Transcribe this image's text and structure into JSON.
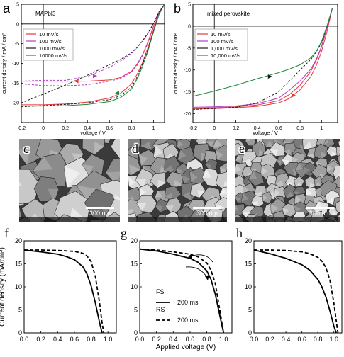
{
  "panel_labels": [
    "a",
    "b",
    "c",
    "d",
    "e",
    "f",
    "g",
    "h"
  ],
  "sem": {
    "scale_bar_label": "300 nm",
    "panels": [
      {
        "id": "c",
        "grain": "large"
      },
      {
        "id": "d",
        "grain": "medium"
      },
      {
        "id": "e",
        "grain": "small"
      }
    ]
  },
  "colors": {
    "red": "#e8343a",
    "magenta": "#b43cc8",
    "black": "#1a1a1a",
    "green": "#1f8a3c"
  },
  "chart_data": [
    {
      "id": "a",
      "type": "line",
      "annotation": "MAPbI3",
      "xlabel": "voltage / V",
      "ylabel": "current density / mA / cm²",
      "xlim": [
        -0.2,
        1.1
      ],
      "ylim": [
        -25,
        5
      ],
      "xticks": [
        -0.2,
        0,
        0.2,
        0.4,
        0.6,
        0.8,
        1
      ],
      "yticks": [
        -20,
        -15,
        -10,
        -5,
        0,
        5
      ],
      "legend_position": "middle-left",
      "series": [
        {
          "name": "10 mV/s",
          "color": "#e8343a",
          "style": "solid",
          "x": [
            -0.2,
            0,
            0.2,
            0.4,
            0.6,
            0.7,
            0.8,
            0.85,
            0.9,
            0.95,
            1.0,
            1.05,
            1.1
          ],
          "y": [
            -14.5,
            -14.5,
            -14.5,
            -14.5,
            -14.2,
            -13.6,
            -12,
            -10.2,
            -7.8,
            -4.5,
            -0.5,
            3,
            5
          ]
        },
        {
          "name": "10 mV/s",
          "color": "#e8343a",
          "style": "solid",
          "x": [
            -0.2,
            0,
            0.2,
            0.4,
            0.6,
            0.7,
            0.8,
            0.85,
            0.9,
            0.95,
            1.0,
            1.05,
            1.1
          ],
          "y": [
            -20.5,
            -20.5,
            -20.3,
            -19.8,
            -18.8,
            -17.6,
            -15.2,
            -12.8,
            -9.8,
            -6,
            -1.5,
            2.5,
            5
          ]
        },
        {
          "name": "100 mV/s",
          "color": "#b43cc8",
          "style": "dashed",
          "x": [
            -0.2,
            0,
            0.2,
            0.4,
            0.6,
            0.7,
            0.8,
            0.85,
            0.9,
            0.95,
            1.0,
            1.05,
            1.1
          ],
          "y": [
            -15.2,
            -15.6,
            -15.7,
            -15.4,
            -14.5,
            -13.8,
            -12.2,
            -10.5,
            -8,
            -4.8,
            -0.8,
            3,
            5
          ]
        },
        {
          "name": "100 mV/s",
          "color": "#b43cc8",
          "style": "dashed",
          "x": [
            -0.2,
            0,
            0.2,
            0.4,
            0.6,
            0.7,
            0.8,
            0.85,
            0.9,
            0.95,
            1.0,
            1.05,
            1.1
          ],
          "y": [
            -14.5,
            -14.3,
            -14.3,
            -13.3,
            -11,
            -9.4,
            -7.5,
            -6,
            -4.4,
            -2.4,
            0.2,
            3,
            5
          ]
        },
        {
          "name": "1000 mV/s",
          "color": "#1a1a1a",
          "style": "dashed",
          "x": [
            -0.2,
            0,
            0.2,
            0.4,
            0.6,
            0.7,
            0.8,
            0.85,
            0.9,
            0.95,
            1.0,
            1.05,
            1.1
          ],
          "y": [
            -21,
            -20.7,
            -20.4,
            -20,
            -19.2,
            -18.2,
            -16,
            -13.5,
            -10.2,
            -6.4,
            -1.8,
            2.5,
            5
          ]
        },
        {
          "name": "1000 mV/s",
          "color": "#1a1a1a",
          "style": "dashed",
          "x": [
            -0.2,
            0,
            0.2,
            0.4,
            0.6,
            0.7,
            0.8,
            0.85,
            0.9,
            0.95,
            1.0,
            1.05,
            1.1
          ],
          "y": [
            -20,
            -17.8,
            -15.5,
            -13,
            -10.3,
            -9,
            -7.3,
            -6,
            -4.3,
            -2.3,
            0.2,
            3,
            5
          ]
        },
        {
          "name": "10000 mV/s",
          "color": "#1f8a3c",
          "style": "solid",
          "x": [
            -0.2,
            0,
            0.2,
            0.4,
            0.6,
            0.7,
            0.8,
            0.85,
            0.9,
            0.95,
            1.0,
            1.05,
            1.1
          ],
          "y": [
            -20.8,
            -20.8,
            -20.7,
            -20.4,
            -19.7,
            -18.7,
            -16.5,
            -14,
            -10.8,
            -6.8,
            -2,
            2.4,
            5
          ]
        }
      ]
    },
    {
      "id": "b",
      "type": "line",
      "annotation": "mixed perovskite",
      "xlabel": "voltage / V",
      "ylabel": "current density / mA / cm²",
      "xlim": [
        -0.2,
        1.15
      ],
      "ylim": [
        -22,
        5
      ],
      "xticks": [
        -0.2,
        0,
        0.2,
        0.4,
        0.6,
        0.8,
        1
      ],
      "yticks": [
        -20,
        -15,
        -10,
        -5,
        0,
        5
      ],
      "legend_position": "middle-left",
      "series": [
        {
          "name": "10 mV/s",
          "color": "#e8343a",
          "style": "solid",
          "x": [
            -0.2,
            0,
            0.2,
            0.4,
            0.6,
            0.7,
            0.8,
            0.9,
            0.95,
            1.0,
            1.05,
            1.1
          ],
          "y": [
            -18.7,
            -18.6,
            -18.4,
            -18,
            -17,
            -15.6,
            -13.5,
            -10.3,
            -7.8,
            -4.8,
            -0.5,
            4
          ]
        },
        {
          "name": "10 mV/s",
          "color": "#e8343a",
          "style": "solid",
          "x": [
            -0.2,
            0,
            0.2,
            0.4,
            0.6,
            0.7,
            0.8,
            0.9,
            0.95,
            1.0,
            1.05,
            1.1
          ],
          "y": [
            -18.9,
            -18.8,
            -18.6,
            -18.3,
            -17.5,
            -16.5,
            -14.5,
            -11.5,
            -9,
            -5.8,
            -1.3,
            4
          ]
        },
        {
          "name": "100 mV/s",
          "color": "#b43cc8",
          "style": "solid",
          "x": [
            -0.2,
            0,
            0.2,
            0.4,
            0.6,
            0.7,
            0.8,
            0.9,
            0.95,
            1.0,
            1.05,
            1.1
          ],
          "y": [
            -18.5,
            -18.4,
            -18.2,
            -17.7,
            -16.4,
            -14.6,
            -12.5,
            -9.8,
            -7.6,
            -4.6,
            -0.4,
            4
          ]
        },
        {
          "name": "1,000 mV/s",
          "color": "#1a1a1a",
          "style": "dashed",
          "x": [
            -0.2,
            0,
            0.2,
            0.4,
            0.6,
            0.7,
            0.8,
            0.9,
            0.95,
            1.0,
            1.05,
            1.1
          ],
          "y": [
            -19,
            -18.8,
            -18.5,
            -17.5,
            -15,
            -12.5,
            -10,
            -7.6,
            -6,
            -3.8,
            -0.2,
            4
          ]
        },
        {
          "name": "10,000 mV/s",
          "color": "#1f8a3c",
          "style": "solid",
          "x": [
            -0.2,
            0,
            0.2,
            0.4,
            0.6,
            0.7,
            0.8,
            0.9,
            0.95,
            1.0,
            1.05,
            1.1
          ],
          "y": [
            -16,
            -14.8,
            -13.5,
            -12,
            -10.6,
            -9.8,
            -8.8,
            -7.2,
            -5.8,
            -3.5,
            0,
            4
          ]
        }
      ]
    },
    {
      "id": "f",
      "type": "line",
      "xlabel": "",
      "ylabel": "Current density (mA/cm²)",
      "xlim": [
        0,
        1.1
      ],
      "ylim": [
        0,
        20
      ],
      "xticks": [
        0.0,
        0.2,
        0.4,
        0.6,
        0.8,
        1.0
      ],
      "yticks": [
        0,
        5,
        10,
        15,
        20
      ],
      "series": [
        {
          "style": "solid",
          "x": [
            0,
            0.2,
            0.4,
            0.5,
            0.6,
            0.7,
            0.75,
            0.8,
            0.85,
            0.9,
            0.93
          ],
          "y": [
            18,
            17.6,
            17.1,
            16.6,
            15.9,
            14.4,
            12.8,
            10.2,
            6.5,
            2.2,
            0
          ]
        },
        {
          "style": "dashed",
          "x": [
            0,
            0.2,
            0.4,
            0.6,
            0.7,
            0.75,
            0.8,
            0.85,
            0.9,
            0.93,
            0.95
          ],
          "y": [
            18,
            18,
            17.9,
            17.7,
            17.3,
            16.7,
            15.5,
            12.2,
            6.5,
            2.2,
            0
          ]
        }
      ]
    },
    {
      "id": "g",
      "type": "line",
      "xlabel": "Applied voltage (V)",
      "ylabel": "",
      "xlim": [
        0,
        1.1
      ],
      "ylim": [
        0,
        20
      ],
      "xticks": [
        0.0,
        0.2,
        0.4,
        0.6,
        0.8,
        1.0
      ],
      "yticks": [
        0,
        5,
        10,
        15,
        20
      ],
      "legend": [
        {
          "group": "FS",
          "name": "200 ms",
          "style": "solid"
        },
        {
          "group": "RS",
          "name": "200 ms",
          "style": "dashed"
        }
      ],
      "series": [
        {
          "name": "200 ms",
          "style": "solid",
          "x": [
            0,
            0.2,
            0.4,
            0.6,
            0.7,
            0.8,
            0.85,
            0.9,
            0.95,
            1.0
          ],
          "y": [
            18.2,
            17.8,
            17.1,
            16.2,
            15.3,
            13.5,
            11.6,
            8.5,
            4.2,
            0
          ]
        },
        {
          "name": "200 ms",
          "style": "dashed",
          "x": [
            0,
            0.2,
            0.4,
            0.6,
            0.7,
            0.8,
            0.85,
            0.9,
            0.95,
            1.0
          ],
          "y": [
            18.2,
            18,
            17.6,
            17.1,
            16.5,
            15.2,
            13.6,
            10.8,
            5.5,
            0
          ]
        }
      ]
    },
    {
      "id": "h",
      "type": "line",
      "xlabel": "",
      "ylabel": "",
      "xlim": [
        0,
        1.1
      ],
      "ylim": [
        0,
        20
      ],
      "xticks": [
        0.0,
        0.2,
        0.4,
        0.6,
        0.8,
        1.0
      ],
      "yticks": [
        0,
        5,
        10,
        15,
        20
      ],
      "series": [
        {
          "style": "solid",
          "x": [
            0,
            0.2,
            0.4,
            0.6,
            0.7,
            0.8,
            0.85,
            0.9,
            0.95,
            1.0,
            1.03
          ],
          "y": [
            18,
            17.2,
            16.2,
            14.8,
            13.6,
            11.6,
            10,
            7.8,
            4.8,
            1.5,
            0
          ]
        },
        {
          "style": "dashed",
          "x": [
            0,
            0.2,
            0.4,
            0.6,
            0.7,
            0.8,
            0.85,
            0.9,
            0.95,
            1.0,
            1.05
          ],
          "y": [
            18,
            18,
            17.9,
            17.6,
            17.2,
            16.4,
            15.6,
            14.2,
            11.5,
            6.5,
            0
          ]
        }
      ]
    }
  ]
}
